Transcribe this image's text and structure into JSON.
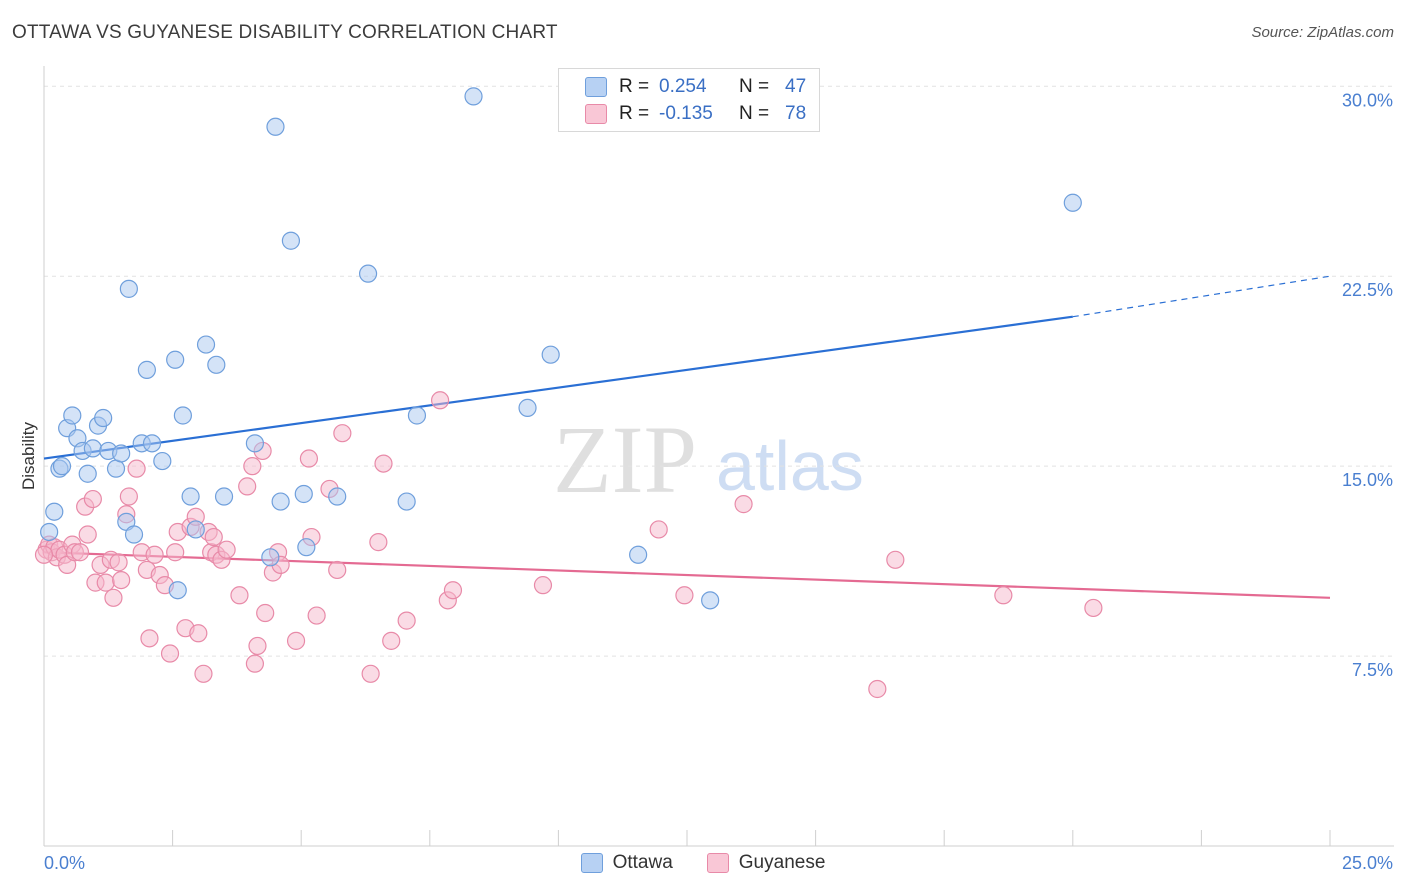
{
  "header": {
    "title": "OTTAWA VS GUYANESE DISABILITY CORRELATION CHART",
    "source": "Source: ZipAtlas.com"
  },
  "legend": {
    "series": [
      {
        "r_label": "R =",
        "r_value": "0.254",
        "n_label": "N =",
        "n_value": "47"
      },
      {
        "r_label": "R =",
        "r_value": "-0.135",
        "n_label": "N =",
        "n_value": "78"
      }
    ]
  },
  "bottom_legend": {
    "ottawa": "Ottawa",
    "guyanese": "Guyanese"
  },
  "watermark": {
    "zip": "ZIP",
    "atlas": "atlas"
  },
  "colors": {
    "ottawa_fill": "#a9c8f0",
    "ottawa_stroke": "#6f9fdc",
    "ottawa_line": "#2a6fd4",
    "guyanese_fill": "#f6b8cb",
    "guyanese_stroke": "#e88aa8",
    "guyanese_line": "#e46a92",
    "tick_label": "#4a7fd0",
    "grid": "#e2e2e2"
  },
  "chart_data": {
    "type": "scatter",
    "title": "OTTAWA VS GUYANESE DISABILITY CORRELATION CHART",
    "xlabel": "",
    "ylabel": "Disability",
    "xlim": [
      0,
      25
    ],
    "ylim": [
      0,
      30.8
    ],
    "x_tick_labels": [
      "0.0%",
      "25.0%"
    ],
    "y_ticks": [
      7.5,
      15.0,
      22.5,
      30.0
    ],
    "y_tick_labels": [
      "7.5%",
      "15.0%",
      "22.5%",
      "30.0%"
    ],
    "grid": true,
    "legend_position": "top-center",
    "series": [
      {
        "name": "Ottawa",
        "r": 0.254,
        "n": 47,
        "trend": {
          "x0": 0,
          "y0": 15.3,
          "x1": 20,
          "y1": 20.9,
          "dashed_to_x": 25,
          "dashed_to_y": 22.5
        },
        "points": [
          [
            0.1,
            12.4
          ],
          [
            0.2,
            13.2
          ],
          [
            0.3,
            14.9
          ],
          [
            0.35,
            15.0
          ],
          [
            0.45,
            16.5
          ],
          [
            0.55,
            17.0
          ],
          [
            0.65,
            16.1
          ],
          [
            0.75,
            15.6
          ],
          [
            0.85,
            14.7
          ],
          [
            0.95,
            15.7
          ],
          [
            1.05,
            16.6
          ],
          [
            1.15,
            16.9
          ],
          [
            1.25,
            15.6
          ],
          [
            1.4,
            14.9
          ],
          [
            1.5,
            15.5
          ],
          [
            1.6,
            12.8
          ],
          [
            1.65,
            22.0
          ],
          [
            1.75,
            12.3
          ],
          [
            1.9,
            15.9
          ],
          [
            2.0,
            18.8
          ],
          [
            2.1,
            15.9
          ],
          [
            2.3,
            15.2
          ],
          [
            2.55,
            19.2
          ],
          [
            2.6,
            10.1
          ],
          [
            2.7,
            17.0
          ],
          [
            2.85,
            13.8
          ],
          [
            2.95,
            12.5
          ],
          [
            3.15,
            19.8
          ],
          [
            3.35,
            19.0
          ],
          [
            3.5,
            13.8
          ],
          [
            4.1,
            15.9
          ],
          [
            4.4,
            11.4
          ],
          [
            4.5,
            28.4
          ],
          [
            4.6,
            13.6
          ],
          [
            4.8,
            23.9
          ],
          [
            5.05,
            13.9
          ],
          [
            5.1,
            11.8
          ],
          [
            5.7,
            13.8
          ],
          [
            6.3,
            22.6
          ],
          [
            7.05,
            13.6
          ],
          [
            7.25,
            17.0
          ],
          [
            8.35,
            29.6
          ],
          [
            9.4,
            17.3
          ],
          [
            9.85,
            19.4
          ],
          [
            11.55,
            11.5
          ],
          [
            12.95,
            9.7
          ],
          [
            20.0,
            25.4
          ]
        ]
      },
      {
        "name": "Guyanese",
        "r": -0.135,
        "n": 78,
        "trend": {
          "x0": 0,
          "y0": 11.6,
          "x1": 25,
          "y1": 9.8
        },
        "points": [
          [
            0.05,
            11.7
          ],
          [
            0.1,
            11.9
          ],
          [
            0.15,
            11.6
          ],
          [
            0.2,
            11.8
          ],
          [
            0.25,
            11.4
          ],
          [
            0.3,
            11.7
          ],
          [
            0.4,
            11.5
          ],
          [
            0.45,
            11.1
          ],
          [
            0.55,
            11.9
          ],
          [
            0.6,
            11.6
          ],
          [
            0.7,
            11.6
          ],
          [
            0.8,
            13.4
          ],
          [
            0.85,
            12.3
          ],
          [
            0.95,
            13.7
          ],
          [
            1.0,
            10.4
          ],
          [
            1.1,
            11.1
          ],
          [
            1.2,
            10.4
          ],
          [
            1.3,
            11.3
          ],
          [
            1.35,
            9.8
          ],
          [
            1.45,
            11.2
          ],
          [
            1.5,
            10.5
          ],
          [
            1.6,
            13.1
          ],
          [
            1.65,
            13.8
          ],
          [
            1.8,
            14.9
          ],
          [
            1.9,
            11.6
          ],
          [
            2.0,
            10.9
          ],
          [
            2.05,
            8.2
          ],
          [
            2.15,
            11.5
          ],
          [
            2.25,
            10.7
          ],
          [
            2.35,
            10.3
          ],
          [
            2.45,
            7.6
          ],
          [
            2.55,
            11.6
          ],
          [
            2.6,
            12.4
          ],
          [
            2.75,
            8.6
          ],
          [
            2.85,
            12.6
          ],
          [
            2.95,
            13.0
          ],
          [
            3.0,
            8.4
          ],
          [
            3.1,
            6.8
          ],
          [
            3.2,
            12.4
          ],
          [
            3.25,
            11.6
          ],
          [
            3.3,
            12.2
          ],
          [
            3.35,
            11.5
          ],
          [
            3.45,
            11.3
          ],
          [
            3.55,
            11.7
          ],
          [
            3.8,
            9.9
          ],
          [
            3.95,
            14.2
          ],
          [
            4.05,
            15.0
          ],
          [
            4.1,
            7.2
          ],
          [
            4.15,
            7.9
          ],
          [
            4.25,
            15.6
          ],
          [
            4.3,
            9.2
          ],
          [
            4.45,
            10.8
          ],
          [
            4.55,
            11.6
          ],
          [
            4.6,
            11.1
          ],
          [
            4.9,
            8.1
          ],
          [
            5.15,
            15.3
          ],
          [
            5.2,
            12.2
          ],
          [
            5.3,
            9.1
          ],
          [
            5.55,
            14.1
          ],
          [
            5.7,
            10.9
          ],
          [
            5.8,
            16.3
          ],
          [
            6.35,
            6.8
          ],
          [
            6.5,
            12.0
          ],
          [
            6.6,
            15.1
          ],
          [
            6.75,
            8.1
          ],
          [
            7.05,
            8.9
          ],
          [
            7.7,
            17.6
          ],
          [
            7.85,
            9.7
          ],
          [
            7.95,
            10.1
          ],
          [
            9.7,
            10.3
          ],
          [
            11.95,
            12.5
          ],
          [
            12.45,
            9.9
          ],
          [
            13.6,
            13.5
          ],
          [
            16.2,
            6.2
          ],
          [
            16.55,
            11.3
          ],
          [
            18.65,
            9.9
          ],
          [
            20.4,
            9.4
          ],
          [
            0.0,
            11.5
          ]
        ]
      }
    ]
  }
}
